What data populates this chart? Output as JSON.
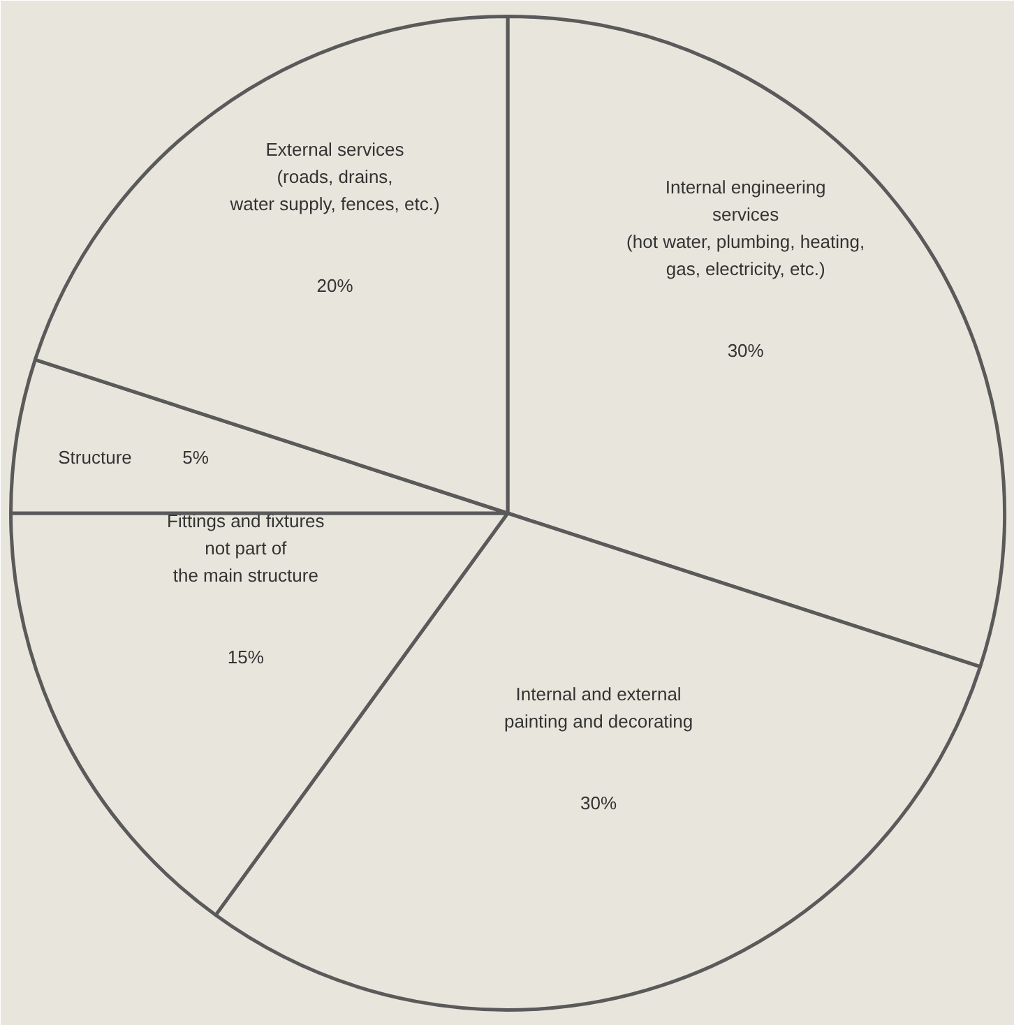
{
  "chart_data": {
    "type": "pie",
    "categories": [
      "Internal engineering\nservices\n(hot water, plumbing, heating,\ngas, electricity, etc.)",
      "Internal and external\npainting and decorating",
      "Fittings and fixtures\nnot part of\nthe main structure",
      "Structure",
      "External services\n(roads, drains,\nwater supply, fences, etc.)"
    ],
    "values": [
      30,
      30,
      15,
      5,
      20
    ],
    "value_labels": [
      "30%",
      "30%",
      "15%",
      "5%",
      "20%"
    ],
    "colors": [
      "#e8e6dc",
      "#e8e6dc",
      "#e8e6dc",
      "#e8e6dc",
      "#e8e6dc"
    ]
  }
}
